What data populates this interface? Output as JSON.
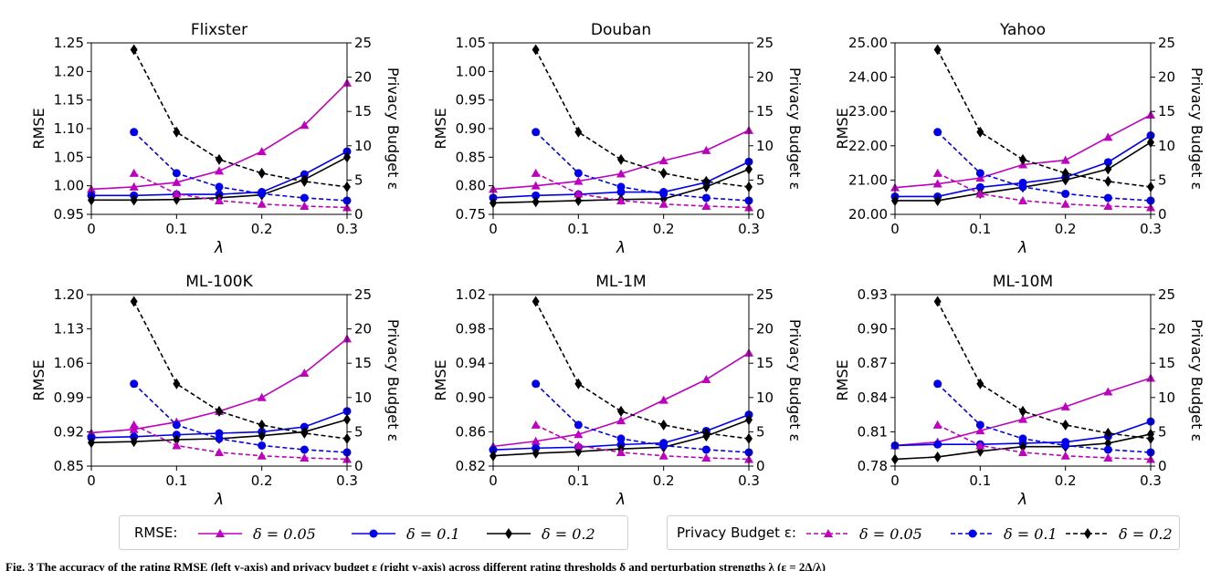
{
  "chart_data": [
    {
      "type": "line",
      "title": "Flixster",
      "xlabel": "λ",
      "ylabel": "RMSE",
      "y2label": "Privacy Budget ε",
      "xlim": [
        0,
        0.3
      ],
      "ylim": [
        0.95,
        1.25
      ],
      "y2lim": [
        0,
        25
      ],
      "xticks": [
        "0",
        "0.1",
        "0.2",
        "0.3"
      ],
      "yticks": [
        "0.95",
        "1.00",
        "1.05",
        "1.10",
        "1.15",
        "1.20",
        "1.25"
      ],
      "y2ticks": [
        "0",
        "5",
        "10",
        "15",
        "20",
        "25"
      ],
      "rmse_x": [
        0,
        0.05,
        0.1,
        0.15,
        0.2,
        0.25,
        0.3
      ],
      "rmse_series": [
        {
          "name": "δ = 0.05",
          "values": [
            0.994,
            0.998,
            1.006,
            1.026,
            1.06,
            1.106,
            1.18
          ]
        },
        {
          "name": "δ = 0.1",
          "values": [
            0.983,
            0.983,
            0.985,
            0.985,
            0.989,
            1.02,
            1.06
          ]
        },
        {
          "name": "δ = 0.2",
          "values": [
            0.975,
            0.975,
            0.976,
            0.979,
            0.984,
            1.011,
            1.05
          ]
        }
      ],
      "privacy_x": [
        0.05,
        0.1,
        0.15,
        0.2,
        0.25,
        0.3
      ],
      "privacy_series": [
        {
          "name": "δ = 0.05",
          "values": [
            6.0,
            3.0,
            2.0,
            1.5,
            1.2,
            1.0
          ]
        },
        {
          "name": "δ = 0.1",
          "values": [
            12.0,
            6.0,
            4.0,
            3.0,
            2.4,
            2.0
          ]
        },
        {
          "name": "δ = 0.2",
          "values": [
            24.0,
            12.0,
            8.0,
            6.0,
            4.8,
            4.0
          ]
        }
      ]
    },
    {
      "type": "line",
      "title": "Douban",
      "xlabel": "λ",
      "ylabel": "RMSE",
      "y2label": "Privacy Budget ε",
      "xlim": [
        0,
        0.3
      ],
      "ylim": [
        0.75,
        1.05
      ],
      "y2lim": [
        0,
        25
      ],
      "xticks": [
        "0",
        "0.1",
        "0.2",
        "0.3"
      ],
      "yticks": [
        "0.75",
        "0.80",
        "0.85",
        "0.90",
        "0.95",
        "1.00",
        "1.05"
      ],
      "y2ticks": [
        "0",
        "5",
        "10",
        "15",
        "20",
        "25"
      ],
      "rmse_x": [
        0,
        0.05,
        0.1,
        0.15,
        0.2,
        0.25,
        0.3
      ],
      "rmse_series": [
        {
          "name": "δ = 0.05",
          "values": [
            0.794,
            0.8,
            0.808,
            0.821,
            0.844,
            0.862,
            0.897
          ]
        },
        {
          "name": "δ = 0.1",
          "values": [
            0.779,
            0.783,
            0.785,
            0.789,
            0.789,
            0.806,
            0.842
          ]
        },
        {
          "name": "δ = 0.2",
          "values": [
            0.77,
            0.772,
            0.774,
            0.776,
            0.777,
            0.798,
            0.829
          ]
        }
      ],
      "privacy_x": [
        0.05,
        0.1,
        0.15,
        0.2,
        0.25,
        0.3
      ],
      "privacy_series": [
        {
          "name": "δ = 0.05",
          "values": [
            6.0,
            3.0,
            2.0,
            1.5,
            1.2,
            1.0
          ]
        },
        {
          "name": "δ = 0.1",
          "values": [
            12.0,
            6.0,
            4.0,
            3.0,
            2.4,
            2.0
          ]
        },
        {
          "name": "δ = 0.2",
          "values": [
            24.0,
            12.0,
            8.0,
            6.0,
            4.8,
            4.0
          ]
        }
      ]
    },
    {
      "type": "line",
      "title": "Yahoo",
      "xlabel": "λ",
      "ylabel": "RMSE",
      "y2label": "Privacy Budget ε",
      "xlim": [
        0,
        0.3
      ],
      "ylim": [
        20.0,
        25.0
      ],
      "y2lim": [
        0,
        25
      ],
      "xticks": [
        "0",
        "0.1",
        "0.2",
        "0.3"
      ],
      "yticks": [
        "20.00",
        "21.00",
        "22.00",
        "23.00",
        "24.00",
        "25.00"
      ],
      "y2ticks": [
        "0",
        "5",
        "10",
        "15",
        "20",
        "25"
      ],
      "rmse_x": [
        0,
        0.05,
        0.1,
        0.15,
        0.2,
        0.25,
        0.3
      ],
      "rmse_series": [
        {
          "name": "δ = 0.05",
          "values": [
            20.78,
            20.89,
            21.06,
            21.45,
            21.58,
            22.25,
            22.9
          ]
        },
        {
          "name": "δ = 0.1",
          "values": [
            20.52,
            20.52,
            20.79,
            20.92,
            21.08,
            21.52,
            22.3
          ]
        },
        {
          "name": "δ = 0.2",
          "values": [
            20.4,
            20.4,
            20.61,
            20.79,
            21.0,
            21.32,
            22.1
          ]
        }
      ],
      "privacy_x": [
        0.05,
        0.1,
        0.15,
        0.2,
        0.25,
        0.3
      ],
      "privacy_series": [
        {
          "name": "δ = 0.05",
          "values": [
            6.0,
            3.0,
            2.0,
            1.5,
            1.2,
            1.0
          ]
        },
        {
          "name": "δ = 0.1",
          "values": [
            12.0,
            6.0,
            4.0,
            3.0,
            2.4,
            2.0
          ]
        },
        {
          "name": "δ = 0.2",
          "values": [
            24.0,
            12.0,
            8.0,
            6.0,
            4.8,
            4.0
          ]
        }
      ]
    },
    {
      "type": "line",
      "title": "ML-100K",
      "xlabel": "λ",
      "ylabel": "RMSE",
      "y2label": "Privacy Budget ε",
      "xlim": [
        0,
        0.3
      ],
      "ylim": [
        0.85,
        1.2
      ],
      "y2lim": [
        0,
        25
      ],
      "xticks": [
        "0",
        "0.1",
        "0.2",
        "0.3"
      ],
      "yticks": [
        "0.85",
        "0.92",
        "0.99",
        "1.06",
        "1.13",
        "1.20"
      ],
      "y2ticks": [
        "0",
        "5",
        "10",
        "15",
        "20",
        "25"
      ],
      "rmse_x": [
        0,
        0.05,
        0.1,
        0.15,
        0.2,
        0.25,
        0.3
      ],
      "rmse_series": [
        {
          "name": "δ = 0.05",
          "values": [
            0.918,
            0.925,
            0.94,
            0.962,
            0.99,
            1.04,
            1.11
          ]
        },
        {
          "name": "δ = 0.1",
          "values": [
            0.908,
            0.91,
            0.914,
            0.917,
            0.92,
            0.93,
            0.962
          ]
        },
        {
          "name": "δ = 0.2",
          "values": [
            0.898,
            0.9,
            0.904,
            0.906,
            0.912,
            0.92,
            0.945
          ]
        }
      ],
      "privacy_x": [
        0.05,
        0.1,
        0.15,
        0.2,
        0.25,
        0.3
      ],
      "privacy_series": [
        {
          "name": "δ = 0.05",
          "values": [
            6.0,
            3.0,
            2.0,
            1.5,
            1.2,
            1.0
          ]
        },
        {
          "name": "δ = 0.1",
          "values": [
            12.0,
            6.0,
            4.0,
            3.0,
            2.4,
            2.0
          ]
        },
        {
          "name": "δ = 0.2",
          "values": [
            24.0,
            12.0,
            8.0,
            6.0,
            4.8,
            4.0
          ]
        }
      ]
    },
    {
      "type": "line",
      "title": "ML-1M",
      "xlabel": "λ",
      "ylabel": "RMSE",
      "y2label": "Privacy Budget ε",
      "xlim": [
        0,
        0.3
      ],
      "ylim": [
        0.82,
        1.02
      ],
      "y2lim": [
        0,
        25
      ],
      "xticks": [
        "0",
        "0.1",
        "0.2",
        "0.3"
      ],
      "yticks": [
        "0.82",
        "0.86",
        "0.90",
        "0.94",
        "0.98",
        "1.02"
      ],
      "y2ticks": [
        "0",
        "5",
        "10",
        "15",
        "20",
        "25"
      ],
      "rmse_x": [
        0,
        0.05,
        0.1,
        0.15,
        0.2,
        0.25,
        0.3
      ],
      "rmse_series": [
        {
          "name": "δ = 0.05",
          "values": [
            0.843,
            0.849,
            0.857,
            0.873,
            0.897,
            0.921,
            0.952
          ]
        },
        {
          "name": "δ = 0.1",
          "values": [
            0.839,
            0.841,
            0.842,
            0.845,
            0.847,
            0.861,
            0.88
          ]
        },
        {
          "name": "δ = 0.2",
          "values": [
            0.832,
            0.835,
            0.837,
            0.84,
            0.842,
            0.855,
            0.874
          ]
        }
      ],
      "privacy_x": [
        0.05,
        0.1,
        0.15,
        0.2,
        0.25,
        0.3
      ],
      "privacy_series": [
        {
          "name": "δ = 0.05",
          "values": [
            6.0,
            3.0,
            2.0,
            1.5,
            1.2,
            1.0
          ]
        },
        {
          "name": "δ = 0.1",
          "values": [
            12.0,
            6.0,
            4.0,
            3.0,
            2.4,
            2.0
          ]
        },
        {
          "name": "δ = 0.2",
          "values": [
            24.0,
            12.0,
            8.0,
            6.0,
            4.8,
            4.0
          ]
        }
      ]
    },
    {
      "type": "line",
      "title": "ML-10M",
      "xlabel": "λ",
      "ylabel": "RMSE",
      "y2label": "Privacy Budget ε",
      "xlim": [
        0,
        0.3
      ],
      "ylim": [
        0.78,
        0.93
      ],
      "y2lim": [
        0,
        25
      ],
      "xticks": [
        "0",
        "0.1",
        "0.2",
        "0.3"
      ],
      "yticks": [
        "0.78",
        "0.81",
        "0.84",
        "0.87",
        "0.90",
        "0.93"
      ],
      "y2ticks": [
        "0",
        "5",
        "10",
        "15",
        "20",
        "25"
      ],
      "rmse_x": [
        0,
        0.05,
        0.1,
        0.15,
        0.2,
        0.25,
        0.3
      ],
      "rmse_series": [
        {
          "name": "δ = 0.05",
          "values": [
            0.798,
            0.801,
            0.811,
            0.821,
            0.832,
            0.845,
            0.857
          ]
        },
        {
          "name": "δ = 0.1",
          "values": [
            0.798,
            0.799,
            0.799,
            0.8,
            0.801,
            0.806,
            0.819
          ]
        },
        {
          "name": "δ = 0.2",
          "values": [
            0.786,
            0.788,
            0.793,
            0.797,
            0.797,
            0.8,
            0.808
          ]
        }
      ],
      "privacy_x": [
        0.05,
        0.1,
        0.15,
        0.2,
        0.25,
        0.3
      ],
      "privacy_series": [
        {
          "name": "δ = 0.05",
          "values": [
            6.0,
            3.0,
            2.0,
            1.5,
            1.2,
            1.0
          ]
        },
        {
          "name": "δ = 0.1",
          "values": [
            12.0,
            6.0,
            4.0,
            3.0,
            2.4,
            2.0
          ]
        },
        {
          "name": "δ = 0.2",
          "values": [
            24.0,
            12.0,
            8.0,
            6.0,
            4.8,
            4.0
          ]
        }
      ]
    }
  ],
  "series_style": [
    {
      "color": "#bf00bf",
      "marker": "triangle"
    },
    {
      "color": "#0000ee",
      "marker": "circle"
    },
    {
      "color": "#000000",
      "marker": "diamond"
    }
  ],
  "legend": {
    "rmse_title": "RMSE:",
    "privacy_title": "Privacy Budget ε:",
    "labels": [
      "δ = 0.05",
      "δ = 0.1",
      "δ = 0.2"
    ]
  },
  "caption": "Fig. 3 The accuracy of the rating RMSE (left y-axis) and privacy budget ε (right y-axis) across different rating thresholds δ and perturbation strengths λ (ε = 2Δ/λ)"
}
